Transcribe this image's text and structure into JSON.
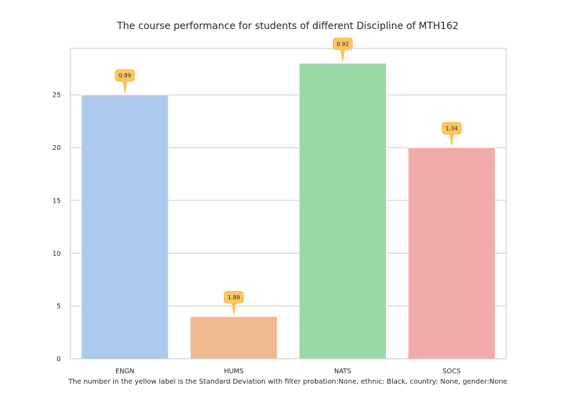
{
  "chart_data": {
    "type": "bar",
    "title": "The course performance for students of different Discipline of MTH162",
    "caption": "The number in the yellow label is the Standard Deviation with filter probation:None, ethnic: Black, country: None, gender:None",
    "xlabel": "",
    "ylabel": "",
    "categories": [
      "ENGN",
      "HUMS",
      "NATS",
      "SOCS"
    ],
    "values": [
      25,
      4,
      28,
      20
    ],
    "std_labels": [
      "0.89",
      "1.89",
      "0.92",
      "1.34"
    ],
    "bar_colors": [
      "#abc9ec",
      "#f0b891",
      "#99d9a7",
      "#f2aaaa"
    ],
    "annotation_color": "#fcc660",
    "yticks": [
      0,
      5,
      10,
      15,
      20,
      25
    ],
    "ylim": [
      0,
      29.4
    ],
    "grid": true,
    "legend": "none"
  }
}
